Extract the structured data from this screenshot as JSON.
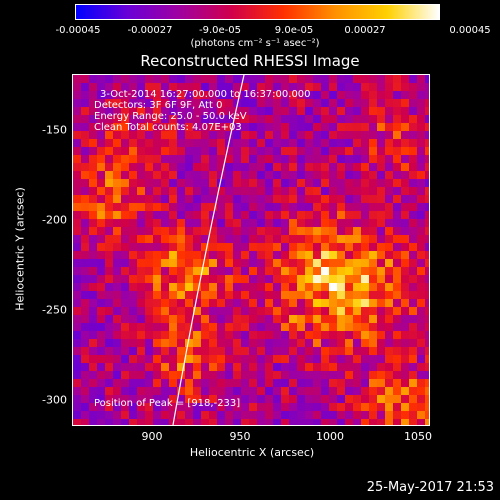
{
  "colorbar": {
    "labels": [
      "-0.00045",
      "-0.00027",
      "-9.0e-05",
      "9.0e-05",
      "0.00027",
      "0.00045"
    ],
    "units": "(photons cm⁻² s⁻¹ asec⁻²)"
  },
  "title": "Reconstructed RHESSI Image",
  "info": {
    "line1": "3-Oct-2014 16:27:00.000 to 16:37:00.000",
    "line2": "Detectors: 3F 6F 9F, Att 0",
    "line3": "Energy Range: 25.0 - 50.0 keV",
    "line4": "Clean    Total counts: 4.07E+03",
    "peak": "Position of Peak = [918,-233]"
  },
  "axes": {
    "xlabel": "Heliocentric X (arcsec)",
    "ylabel": "Heliocentric Y (arcsec)",
    "xticks": [
      "900",
      "950",
      "1000",
      "1050"
    ],
    "yticks": [
      "-150",
      "-200",
      "-250",
      "-300"
    ]
  },
  "date_stamp": "25-May-2017 21:53",
  "colors": {
    "colormap": [
      "#0000ff",
      "#6a00d6",
      "#a000a0",
      "#d0004a",
      "#ff3000",
      "#ff9000",
      "#ffd000",
      "#ffffff"
    ]
  }
}
